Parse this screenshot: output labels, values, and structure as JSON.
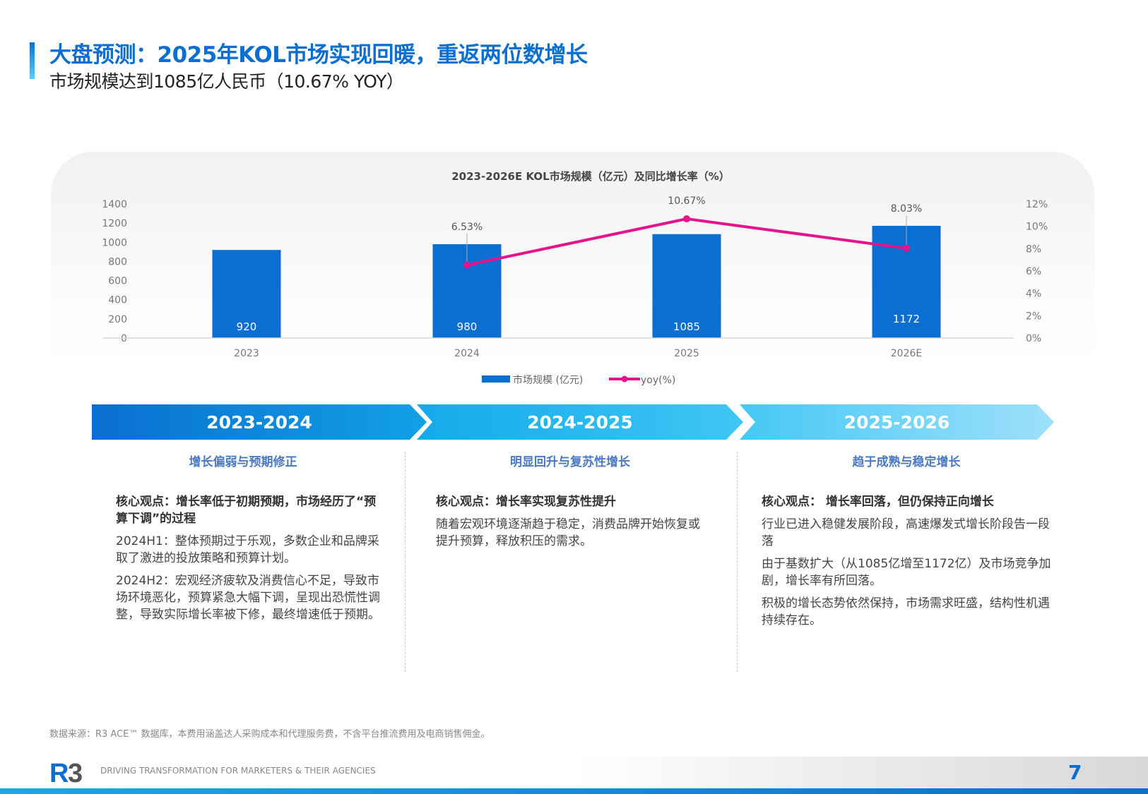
{
  "header": {
    "title": "大盘预测：2025年KOL市场实现回暖，重返两位数增长",
    "subtitle": "市场规模达到1085亿人民币（10.67% YOY）"
  },
  "chart_data": {
    "type": "bar+line",
    "title": "2023-2026E KOL市场规模（亿元）及同比增长率（%）",
    "categories": [
      "2023",
      "2024",
      "2025",
      "2026E"
    ],
    "series": [
      {
        "name": "市场规模 (亿元)",
        "type": "bar",
        "axis": "left",
        "values": [
          920,
          980,
          1085,
          1172
        ],
        "labels": [
          "920",
          "980",
          "1085",
          "1172"
        ],
        "color": "#0a6fd0"
      },
      {
        "name": "yoy(%)",
        "type": "line",
        "axis": "right",
        "values": [
          null,
          6.53,
          10.67,
          8.03
        ],
        "labels": [
          "",
          "6.53%",
          "10.67%",
          "8.03%"
        ],
        "color": "#e5138c"
      }
    ],
    "y_left": {
      "range": [
        0,
        1400
      ],
      "ticks": [
        "0",
        "200",
        "400",
        "600",
        "800",
        "1000",
        "1200",
        "1400"
      ]
    },
    "y_right": {
      "range": [
        0,
        12
      ],
      "ticks": [
        "0%",
        "2%",
        "4%",
        "6%",
        "8%",
        "10%",
        "12%"
      ]
    },
    "grid": false,
    "legend": "bottom"
  },
  "timeline": [
    {
      "period": "2023-2024",
      "heading": "增长偏弱与预期修正",
      "core": "核心观点：增长率低于初期预期，市场经历了“预算下调”的过程",
      "paras": [
        "2024H1：整体预期过于乐观，多数企业和品牌采取了激进的投放策略和预算计划。",
        "2024H2：宏观经济疲软及消费信心不足，导致市场环境恶化，预算紧急大幅下调，呈现出恐慌性调整，导致实际增长率被下修，最终增速低于预期。"
      ]
    },
    {
      "period": "2024-2025",
      "heading": "明显回升与复苏性增长",
      "core": "核心观点：增长率实现复苏性提升",
      "paras": [
        "随着宏观环境逐渐趋于稳定，消费品牌开始恢复或提升预算，释放积压的需求。"
      ]
    },
    {
      "period": "2025-2026",
      "heading": "趋于成熟与稳定增长",
      "core": "核心观点： 增长率回落，但仍保持正向增长",
      "paras": [
        "行业已进入稳健发展阶段，高速爆发式增长阶段告一段落",
        "由于基数扩大（从1085亿增至1172亿）及市场竞争加剧，增长率有所回落。",
        "积极的增长态势依然保持，市场需求旺盛，结构性机遇持续存在。"
      ]
    }
  ],
  "footer": {
    "source": "数据来源：R3 ACE™ 数据库，本费用涵盖达人采购成本和代理服务费，不含平台推流费用及电商销售佣金。",
    "logo": "R3",
    "tagline": "DRIVING TRANSFORMATION FOR MARKETERS & THEIR AGENCIES",
    "page": "7"
  },
  "colors": {
    "brand": "#0a6fd0",
    "line": "#e5138c",
    "heading": "#4a79c0"
  }
}
